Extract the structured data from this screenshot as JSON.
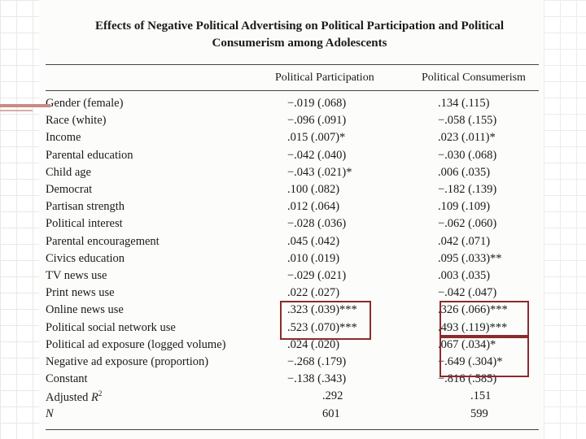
{
  "title": {
    "line1": "Effects of Negative Political Advertising on Political Participation and Political",
    "line2": "Consumerism among Adolescents"
  },
  "columns": [
    "Political Participation",
    "Political Consumerism"
  ],
  "rows": [
    {
      "label": "Gender (female)",
      "pp": "−.019 (.068)",
      "pc": ".134 (.115)"
    },
    {
      "label": "Race (white)",
      "pp": "−.096 (.091)",
      "pc": "−.058 (.155)"
    },
    {
      "label": "Income",
      "pp": ".015 (.007)*",
      "pc": ".023 (.011)*"
    },
    {
      "label": "Parental education",
      "pp": "−.042 (.040)",
      "pc": "−.030 (.068)"
    },
    {
      "label": "Child age",
      "pp": "−.043 (.021)*",
      "pc": ".006 (.035)"
    },
    {
      "label": "Democrat",
      "pp": ".100 (.082)",
      "pc": "−.182 (.139)"
    },
    {
      "label": "Partisan strength",
      "pp": ".012 (.064)",
      "pc": ".109 (.109)"
    },
    {
      "label": "Political interest",
      "pp": "−.028 (.036)",
      "pc": "−.062 (.060)"
    },
    {
      "label": "Parental encouragement",
      "pp": ".045 (.042)",
      "pc": ".042 (.071)"
    },
    {
      "label": "Civics education",
      "pp": ".010 (.019)",
      "pc": ".095 (.033)**"
    },
    {
      "label": "TV news use",
      "pp": "−.029 (.021)",
      "pc": ".003 (.035)"
    },
    {
      "label": "Print news use",
      "pp": ".022 (.027)",
      "pc": "−.042 (.047)"
    },
    {
      "label": "Online news use",
      "pp": ".323 (.039)***",
      "pc": ".326 (.066)***"
    },
    {
      "label": "Political social network use",
      "pp": ".523 (.070)***",
      "pc": ".493 (.119)***"
    },
    {
      "label": "Political ad exposure (logged volume)",
      "pp": ".024 (.020)",
      "pc": ".067 (.034)*"
    },
    {
      "label": "Negative ad exposure (proportion)",
      "pp": "−.268 (.179)",
      "pc": "−.649 (.304)*"
    },
    {
      "label": "Constant",
      "pp": "−.138 (.343)",
      "pc": "−.816 (.585)"
    },
    {
      "label": "Adjusted R",
      "label_sup": "2",
      "pp": ".292",
      "pc": ".151"
    },
    {
      "label": "N",
      "pp": "601",
      "pc": "599"
    }
  ],
  "colors": {
    "highlight": "#8b2b2b",
    "accent": "#c98a86"
  }
}
